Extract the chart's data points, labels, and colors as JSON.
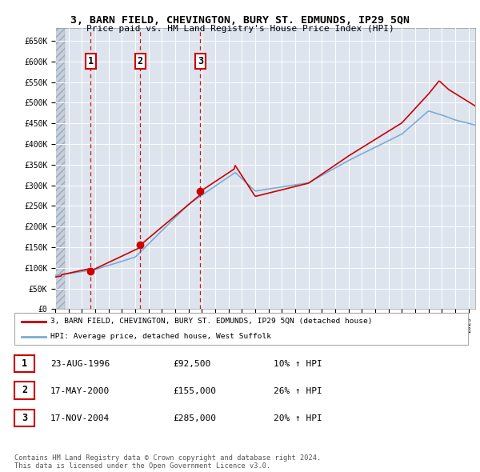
{
  "title": "3, BARN FIELD, CHEVINGTON, BURY ST. EDMUNDS, IP29 5QN",
  "subtitle": "Price paid vs. HM Land Registry's House Price Index (HPI)",
  "background_color": "#ffffff",
  "plot_bg_color": "#dde4ee",
  "grid_color": "#ffffff",
  "line_color_red": "#cc0000",
  "line_color_blue": "#7aadd4",
  "ylim": [
    0,
    680000
  ],
  "yticks": [
    0,
    50000,
    100000,
    150000,
    200000,
    250000,
    300000,
    350000,
    400000,
    450000,
    500000,
    550000,
    600000,
    650000
  ],
  "ytick_labels": [
    "£0",
    "£50K",
    "£100K",
    "£150K",
    "£200K",
    "£250K",
    "£300K",
    "£350K",
    "£400K",
    "£450K",
    "£500K",
    "£550K",
    "£600K",
    "£650K"
  ],
  "sales": [
    {
      "date_num": 1996.65,
      "price": 92500,
      "label": "1"
    },
    {
      "date_num": 2000.38,
      "price": 155000,
      "label": "2"
    },
    {
      "date_num": 2004.88,
      "price": 285000,
      "label": "3"
    }
  ],
  "legend_red": "3, BARN FIELD, CHEVINGTON, BURY ST. EDMUNDS, IP29 5QN (detached house)",
  "legend_blue": "HPI: Average price, detached house, West Suffolk",
  "table_rows": [
    {
      "num": "1",
      "date": "23-AUG-1996",
      "price": "£92,500",
      "hpi": "10% ↑ HPI"
    },
    {
      "num": "2",
      "date": "17-MAY-2000",
      "price": "£155,000",
      "hpi": "26% ↑ HPI"
    },
    {
      "num": "3",
      "date": "17-NOV-2004",
      "price": "£285,000",
      "hpi": "20% ↑ HPI"
    }
  ],
  "footnote": "Contains HM Land Registry data © Crown copyright and database right 2024.\nThis data is licensed under the Open Government Licence v3.0.",
  "xmin": 1994.0,
  "xmax": 2025.5
}
